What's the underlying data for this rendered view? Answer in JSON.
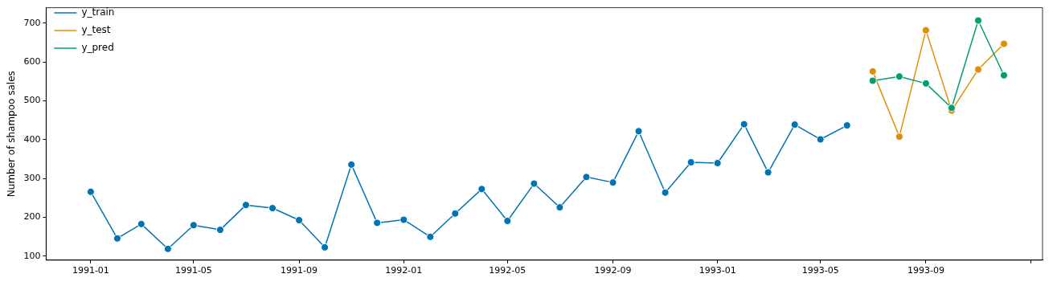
{
  "chart_data": {
    "type": "line",
    "ylabel": "Number of shampoo sales",
    "legend": "top left",
    "marker": "circle",
    "grid": false,
    "line_style": "solid",
    "xlim": [
      "1990-11-10",
      "1994-01-15"
    ],
    "ylim": [
      90,
      740
    ],
    "xticks": [
      "1991-01",
      "1991-05",
      "1991-09",
      "1992-01",
      "1992-05",
      "1992-09",
      "1993-01",
      "1993-05",
      "1993-09",
      {
        "value": "1994-01",
        "label": null
      }
    ],
    "yticks": [
      100,
      200,
      300,
      400,
      500,
      600,
      700
    ],
    "series": [
      {
        "name": "y_train",
        "color": "#0173b2",
        "x": [
          "1991-01",
          "1991-02",
          "1991-03",
          "1991-04",
          "1991-05",
          "1991-06",
          "1991-07",
          "1991-08",
          "1991-09",
          "1991-10",
          "1991-11",
          "1991-12",
          "1992-01",
          "1992-02",
          "1992-03",
          "1992-04",
          "1992-05",
          "1992-06",
          "1992-07",
          "1992-08",
          "1992-09",
          "1992-10",
          "1992-11",
          "1992-12",
          "1993-01",
          "1993-02",
          "1993-03",
          "1993-04",
          "1993-05",
          "1993-06"
        ],
        "values": [
          266,
          146,
          183,
          119,
          180,
          168,
          232,
          224,
          193,
          123,
          336,
          186,
          194,
          150,
          210,
          273,
          191,
          287,
          226,
          304,
          290,
          422,
          264,
          342,
          340,
          440,
          316,
          439,
          401,
          437
        ]
      },
      {
        "name": "y_test",
        "color": "#de8f05",
        "x": [
          "1993-07",
          "1993-08",
          "1993-09",
          "1993-10",
          "1993-11",
          "1993-12"
        ],
        "values": [
          576,
          408,
          682,
          475,
          581,
          647
        ]
      },
      {
        "name": "y_pred",
        "color": "#029e73",
        "x": [
          "1993-07",
          "1993-08",
          "1993-09",
          "1993-10",
          "1993-11",
          "1993-12"
        ],
        "values": [
          552,
          563,
          545,
          482,
          707,
          566
        ]
      }
    ]
  }
}
